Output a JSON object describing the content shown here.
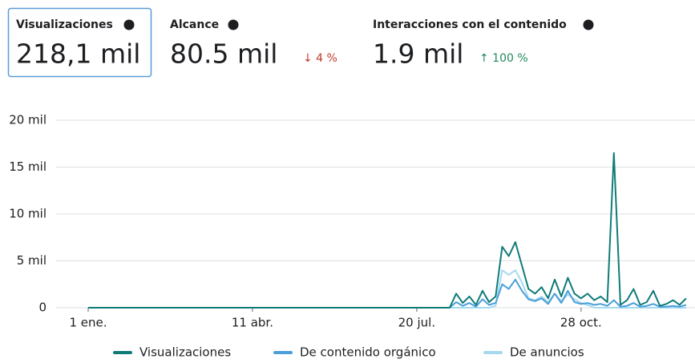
{
  "header": {
    "metrics": [
      {
        "label": "Visualizaciones",
        "value": "218,1 mil"
      },
      {
        "label": "Alcance",
        "value": "80.5 mil",
        "change": "↓ 4 %"
      },
      {
        "label": "Interacciones con el contenido",
        "value": "1.9 mil",
        "change": "↑ 100 %"
      }
    ]
  },
  "chart_data": {
    "type": "line",
    "categories": [
      "1 ene.",
      null,
      null,
      null,
      null,
      null,
      null,
      null,
      null,
      null,
      null,
      null,
      null,
      null,
      null,
      null,
      null,
      null,
      null,
      null,
      null,
      null,
      null,
      null,
      null,
      "11 abr.",
      null,
      null,
      null,
      null,
      null,
      null,
      null,
      null,
      null,
      null,
      null,
      null,
      null,
      null,
      null,
      null,
      null,
      null,
      null,
      null,
      null,
      null,
      null,
      null,
      "20 jul.",
      null,
      null,
      null,
      null,
      null,
      null,
      null,
      null,
      null,
      null,
      null,
      null,
      null,
      null,
      null,
      null,
      null,
      null,
      null,
      null,
      null,
      null,
      null,
      null,
      "28 oct.",
      null,
      null,
      null,
      null,
      null,
      null,
      null,
      null,
      null,
      null,
      null,
      null,
      null,
      null,
      null,
      null
    ],
    "series": [
      {
        "name": "Visualizaciones",
        "color": "#0f7b78",
        "values": [
          0,
          0,
          0,
          0,
          0,
          0,
          0,
          0,
          0,
          0,
          0,
          0,
          0,
          0,
          0,
          0,
          0,
          0,
          0,
          0,
          0,
          0,
          0,
          0,
          0,
          0,
          0,
          0,
          0,
          0,
          0,
          0,
          0,
          0,
          0,
          0,
          0,
          0,
          0,
          0,
          0,
          0,
          0,
          0,
          0,
          0,
          0,
          0,
          0,
          0,
          0,
          0,
          0,
          0,
          0,
          0,
          1500,
          500,
          1200,
          300,
          1800,
          600,
          1200,
          6500,
          5500,
          7000,
          4500,
          2000,
          1500,
          2200,
          1000,
          3000,
          1200,
          3200,
          1500,
          1000,
          1500,
          800,
          1200,
          600,
          16500,
          300,
          800,
          2000,
          300,
          600,
          1800,
          200,
          400,
          800,
          300,
          1000
        ]
      },
      {
        "name": "De contenido orgánico",
        "color": "#4a9fd8",
        "values": [
          0,
          0,
          0,
          0,
          0,
          0,
          0,
          0,
          0,
          0,
          0,
          0,
          0,
          0,
          0,
          0,
          0,
          0,
          0,
          0,
          0,
          0,
          0,
          0,
          0,
          0,
          0,
          0,
          0,
          0,
          0,
          0,
          0,
          0,
          0,
          0,
          0,
          0,
          0,
          0,
          0,
          0,
          0,
          0,
          0,
          0,
          0,
          0,
          0,
          0,
          0,
          0,
          0,
          0,
          0,
          0,
          600,
          200,
          500,
          100,
          900,
          300,
          500,
          2500,
          2000,
          3000,
          1800,
          900,
          700,
          1000,
          400,
          1500,
          500,
          1800,
          600,
          400,
          500,
          300,
          400,
          200,
          800,
          100,
          200,
          500,
          100,
          200,
          400,
          100,
          100,
          200,
          100,
          300
        ]
      },
      {
        "name": "De anuncios",
        "color": "#a6d9f0",
        "values": [
          0,
          0,
          0,
          0,
          0,
          0,
          0,
          0,
          0,
          0,
          0,
          0,
          0,
          0,
          0,
          0,
          0,
          0,
          0,
          0,
          0,
          0,
          0,
          0,
          0,
          0,
          0,
          0,
          0,
          0,
          0,
          0,
          0,
          0,
          0,
          0,
          0,
          0,
          0,
          0,
          0,
          0,
          0,
          0,
          0,
          0,
          0,
          0,
          0,
          0,
          0,
          0,
          0,
          0,
          0,
          0,
          0,
          0,
          0,
          0,
          0,
          0,
          200,
          4000,
          3500,
          4000,
          2700,
          1000,
          800,
          1200,
          600,
          1500,
          700,
          1400,
          900,
          500,
          300,
          0,
          0,
          0,
          0,
          0,
          0,
          0,
          0,
          0,
          0,
          0,
          0,
          0,
          0,
          0
        ]
      }
    ],
    "ylim": [
      0,
      20000
    ],
    "yticks": [
      0,
      {
        "value": 5000,
        "label": "5 mil"
      },
      {
        "value": 10000,
        "label": "10 mil"
      },
      {
        "value": 15000,
        "label": "15 mil"
      },
      {
        "value": 20000,
        "label": "20 mil"
      }
    ],
    "grid": true
  }
}
